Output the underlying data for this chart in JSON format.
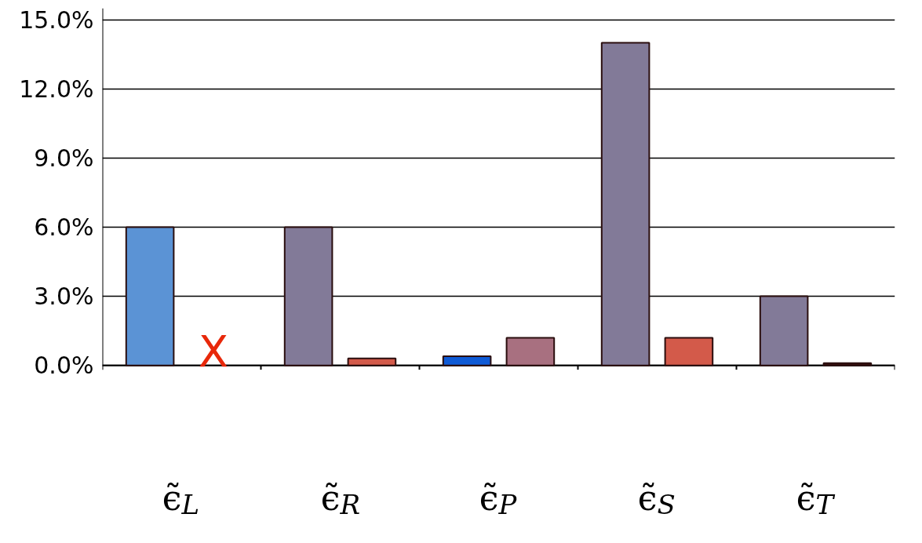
{
  "chart_data": {
    "type": "bar",
    "categories": [
      "ϵ̃$_{L}$",
      "ϵ̃$_{R}$",
      "ϵ̃$_{P}$",
      "ϵ̃$_{S}$",
      "ϵ̃$_{T}$"
    ],
    "series": [
      {
        "colors": [
          "#5b93d5",
          "#827a98",
          "#0f5bd6",
          "#827a98",
          "#827a98"
        ],
        "values": [
          6.0,
          6.0,
          0.4,
          14.0,
          3.0
        ]
      },
      {
        "colors": [
          "#d35a4a",
          "#d35a4a",
          "#a87080",
          "#d35a4a",
          "#3a1010"
        ],
        "values": [
          null,
          0.3,
          1.2,
          1.2,
          0.1
        ]
      }
    ],
    "annotations": [
      "X"
    ],
    "ylim": [
      0,
      15.5
    ],
    "yticks": [
      {
        "value": 0,
        "label": "0.0%"
      },
      {
        "value": 3,
        "label": "3.0%"
      },
      {
        "value": 6,
        "label": "6.0%"
      },
      {
        "value": 9,
        "label": "9.0%"
      },
      {
        "value": 12,
        "label": "12.0%"
      },
      {
        "value": 15,
        "label": "15.0%"
      }
    ],
    "grid": "y"
  }
}
